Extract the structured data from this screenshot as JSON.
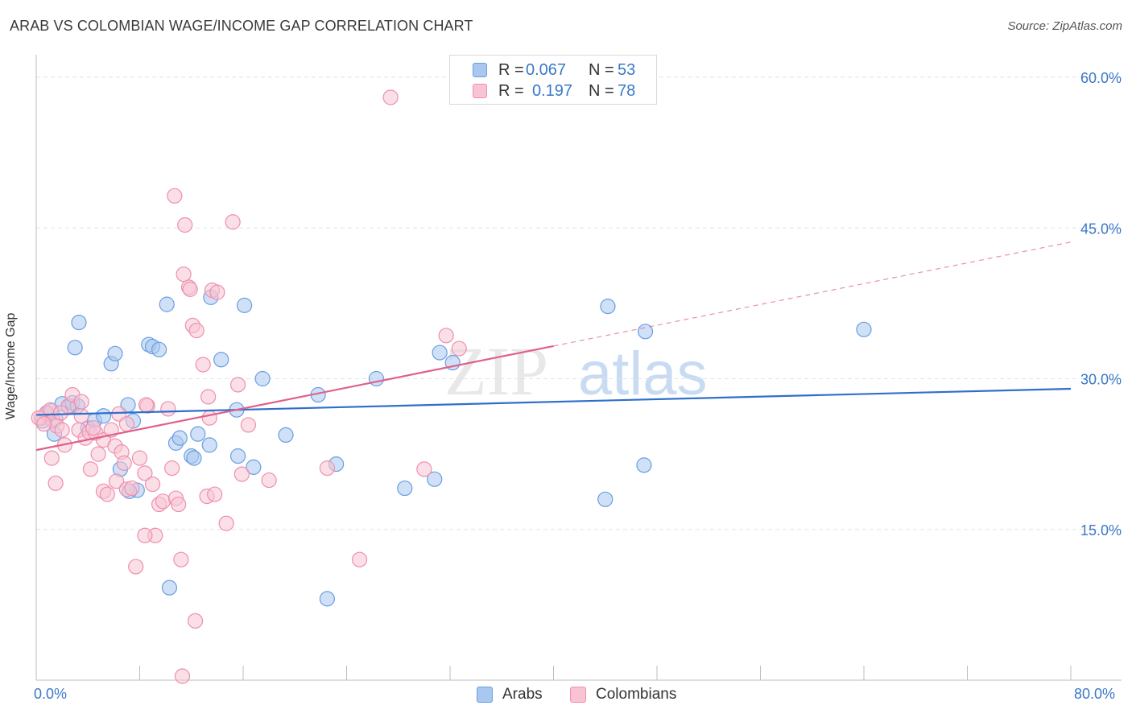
{
  "title": "ARAB VS COLOMBIAN WAGE/INCOME GAP CORRELATION CHART",
  "source": "Source: ZipAtlas.com",
  "watermark": {
    "zip": "ZIP",
    "atlas": "atlas"
  },
  "legend_top": {
    "rows": [
      {
        "r_label": "R =",
        "r_value": "0.067",
        "n_label": "N =",
        "n_value": "53",
        "color": "#a9c8f0",
        "border": "#6a9ee0"
      },
      {
        "r_label": "R =",
        "r_value": "0.197",
        "n_label": "N =",
        "n_value": "78",
        "color": "#f8c4d4",
        "border": "#ee8fae"
      }
    ]
  },
  "legend_bottom": [
    {
      "label": "Arabs",
      "color": "#a9c8f0",
      "border": "#6a9ee0"
    },
    {
      "label": "Colombians",
      "color": "#f8c4d4",
      "border": "#ee8fae"
    }
  ],
  "chart_data": {
    "type": "scatter",
    "title": "ARAB VS COLOMBIAN WAGE/INCOME GAP CORRELATION CHART",
    "xlabel": "",
    "ylabel": "Wage/Income Gap",
    "xlim": [
      0,
      80
    ],
    "ylim": [
      0,
      60
    ],
    "x_tick_labels": {
      "min": "0.0%",
      "max": "80.0%"
    },
    "y_ticks": [
      15,
      30,
      45,
      60
    ],
    "y_tick_labels": [
      "15.0%",
      "30.0%",
      "45.0%",
      "60.0%"
    ],
    "grid": true,
    "legend_position": "top-center",
    "series": [
      {
        "name": "Arabs",
        "color": "#a9c8f0",
        "stroke": "#6a9ee0",
        "line_color": "#2f6fcc",
        "r": 0.067,
        "n": 53,
        "trend": {
          "x0": 0,
          "y0": 26.4,
          "x1": 80,
          "y1": 29.0,
          "dashed_from": null
        },
        "points": [
          [
            0.5,
            25.8
          ],
          [
            0.8,
            26.5
          ],
          [
            1.2,
            26.8
          ],
          [
            1.5,
            26.0
          ],
          [
            2.0,
            27.5
          ],
          [
            2.5,
            27.2
          ],
          [
            1.4,
            24.5
          ],
          [
            2.8,
            27.6
          ],
          [
            3.2,
            27.3
          ],
          [
            3.0,
            33.1
          ],
          [
            3.3,
            35.6
          ],
          [
            4.0,
            25.1
          ],
          [
            4.5,
            25.8
          ],
          [
            5.2,
            26.3
          ],
          [
            5.8,
            31.5
          ],
          [
            6.1,
            32.5
          ],
          [
            7.1,
            27.4
          ],
          [
            7.5,
            25.8
          ],
          [
            8.7,
            33.4
          ],
          [
            9.0,
            33.2
          ],
          [
            9.5,
            32.9
          ],
          [
            10.1,
            37.4
          ],
          [
            6.5,
            21.0
          ],
          [
            7.8,
            18.9
          ],
          [
            7.2,
            18.8
          ],
          [
            10.8,
            23.6
          ],
          [
            11.1,
            24.1
          ],
          [
            12.0,
            22.3
          ],
          [
            12.2,
            22.1
          ],
          [
            12.5,
            24.5
          ],
          [
            13.4,
            23.4
          ],
          [
            14.3,
            31.9
          ],
          [
            13.5,
            38.1
          ],
          [
            16.1,
            37.3
          ],
          [
            15.5,
            26.9
          ],
          [
            16.8,
            21.2
          ],
          [
            17.5,
            30.0
          ],
          [
            19.3,
            24.4
          ],
          [
            15.6,
            22.3
          ],
          [
            21.8,
            28.4
          ],
          [
            23.2,
            21.5
          ],
          [
            26.3,
            30.0
          ],
          [
            28.5,
            19.1
          ],
          [
            30.8,
            20.0
          ],
          [
            31.2,
            32.6
          ],
          [
            32.2,
            31.6
          ],
          [
            44.2,
            37.2
          ],
          [
            47.1,
            34.7
          ],
          [
            44.0,
            18.0
          ],
          [
            47.0,
            21.4
          ],
          [
            64.0,
            34.9
          ],
          [
            10.3,
            9.2
          ],
          [
            22.5,
            8.1
          ]
        ]
      },
      {
        "name": "Colombians",
        "color": "#f8c4d4",
        "stroke": "#ee8fae",
        "line_color": "#e0608a",
        "r": 0.197,
        "n": 78,
        "trend": {
          "x0": 0,
          "y0": 22.9,
          "x1": 80,
          "y1": 43.6,
          "dashed_from": 40
        },
        "points": [
          [
            0.4,
            26.1
          ],
          [
            0.8,
            26.6
          ],
          [
            1.1,
            26.9
          ],
          [
            1.3,
            25.8
          ],
          [
            1.6,
            25.3
          ],
          [
            1.2,
            22.1
          ],
          [
            1.5,
            19.6
          ],
          [
            2.0,
            24.9
          ],
          [
            2.2,
            23.4
          ],
          [
            2.5,
            27.3
          ],
          [
            2.8,
            28.4
          ],
          [
            3.3,
            24.9
          ],
          [
            3.5,
            26.3
          ],
          [
            3.8,
            24.1
          ],
          [
            4.1,
            24.7
          ],
          [
            4.2,
            21.0
          ],
          [
            4.6,
            24.6
          ],
          [
            5.2,
            23.9
          ],
          [
            5.8,
            24.9
          ],
          [
            6.1,
            23.3
          ],
          [
            6.4,
            26.5
          ],
          [
            7.0,
            25.5
          ],
          [
            6.6,
            22.7
          ],
          [
            6.8,
            21.6
          ],
          [
            4.8,
            22.5
          ],
          [
            5.2,
            18.8
          ],
          [
            5.5,
            18.5
          ],
          [
            6.2,
            19.8
          ],
          [
            7.0,
            19.0
          ],
          [
            7.4,
            19.1
          ],
          [
            8.0,
            22.1
          ],
          [
            8.4,
            20.6
          ],
          [
            8.6,
            27.3
          ],
          [
            9.0,
            19.5
          ],
          [
            9.2,
            14.4
          ],
          [
            9.5,
            17.5
          ],
          [
            9.8,
            17.8
          ],
          [
            10.2,
            27.0
          ],
          [
            10.5,
            21.1
          ],
          [
            10.8,
            18.1
          ],
          [
            11.0,
            17.5
          ],
          [
            11.2,
            12.0
          ],
          [
            11.5,
            45.3
          ],
          [
            10.7,
            48.2
          ],
          [
            12.1,
            35.3
          ],
          [
            12.4,
            34.8
          ],
          [
            11.8,
            39.1
          ],
          [
            12.9,
            31.4
          ],
          [
            13.3,
            28.2
          ],
          [
            13.6,
            38.8
          ],
          [
            14.0,
            38.6
          ],
          [
            13.2,
            18.3
          ],
          [
            13.8,
            18.5
          ],
          [
            14.7,
            15.6
          ],
          [
            15.2,
            45.6
          ],
          [
            15.6,
            29.4
          ],
          [
            15.9,
            20.5
          ],
          [
            16.4,
            25.4
          ],
          [
            18.0,
            19.9
          ],
          [
            22.5,
            21.1
          ],
          [
            25.0,
            12.0
          ],
          [
            27.4,
            58.0
          ],
          [
            30.0,
            21.0
          ],
          [
            31.7,
            34.3
          ],
          [
            32.7,
            33.0
          ],
          [
            12.3,
            5.9
          ],
          [
            11.3,
            0.4
          ],
          [
            7.7,
            11.3
          ],
          [
            8.4,
            14.4
          ],
          [
            11.4,
            40.4
          ],
          [
            11.9,
            38.9
          ],
          [
            3.5,
            27.7
          ],
          [
            0.2,
            26.1
          ],
          [
            0.6,
            25.5
          ],
          [
            1.9,
            26.6
          ],
          [
            8.5,
            27.4
          ],
          [
            13.4,
            26.1
          ],
          [
            4.4,
            25.1
          ]
        ]
      }
    ]
  }
}
